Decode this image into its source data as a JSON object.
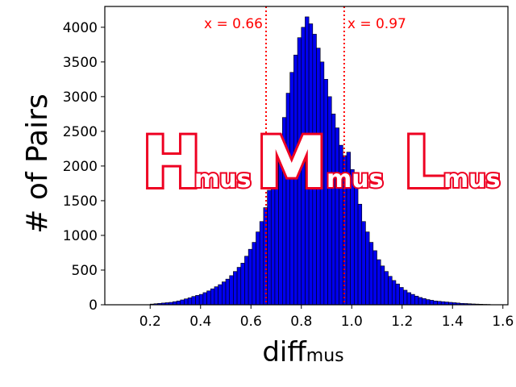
{
  "chart_data": {
    "type": "bar",
    "title": "",
    "xlabel": "diff",
    "xlabel_subscript": "mus",
    "ylabel": "# of Pairs",
    "xlim": [
      0.02,
      1.62
    ],
    "ylim": [
      0,
      4300
    ],
    "xticks": [
      0.2,
      0.4,
      0.6,
      0.8,
      1.0,
      1.2,
      1.4,
      1.6
    ],
    "xtick_labels": [
      "0.2",
      "0.4",
      "0.6",
      "0.8",
      "1.0",
      "1.2",
      "1.4",
      "1.6"
    ],
    "yticks": [
      0,
      500,
      1000,
      1500,
      2000,
      2500,
      3000,
      3500,
      4000
    ],
    "ytick_labels": [
      "0",
      "500",
      "1000",
      "1500",
      "2000",
      "2500",
      "3000",
      "3500",
      "4000"
    ],
    "bar_color": "#0000ee",
    "bar_edge_color": "#000000",
    "bin_width": 0.015,
    "bin_start": 0.2,
    "values": [
      10,
      15,
      20,
      25,
      30,
      35,
      45,
      55,
      70,
      85,
      100,
      120,
      135,
      150,
      175,
      200,
      230,
      260,
      290,
      330,
      370,
      420,
      480,
      540,
      600,
      700,
      800,
      900,
      1050,
      1200,
      1400,
      1650,
      1900,
      2150,
      2450,
      2700,
      3050,
      3350,
      3600,
      3850,
      4000,
      4150,
      4050,
      3900,
      3700,
      3500,
      3250,
      3000,
      2750,
      2550,
      2300,
      2150,
      2200,
      1950,
      1700,
      1450,
      1200,
      1050,
      900,
      780,
      650,
      560,
      480,
      410,
      350,
      300,
      250,
      210,
      175,
      150,
      125,
      105,
      90,
      75,
      65,
      55,
      50,
      45,
      40,
      35,
      30,
      25,
      20,
      18,
      15,
      12,
      10,
      8,
      6,
      5
    ],
    "vlines": [
      {
        "x": 0.66,
        "label": "x = 0.66",
        "color": "#ff0000"
      },
      {
        "x": 0.97,
        "label": "x = 0.97",
        "color": "#ff0000"
      }
    ],
    "overlay_labels": [
      {
        "letter": "H",
        "subscript": "mus"
      },
      {
        "letter": "M",
        "subscript": "mus"
      },
      {
        "letter": "L",
        "subscript": "mus"
      }
    ],
    "grid": false,
    "legend": "none"
  }
}
